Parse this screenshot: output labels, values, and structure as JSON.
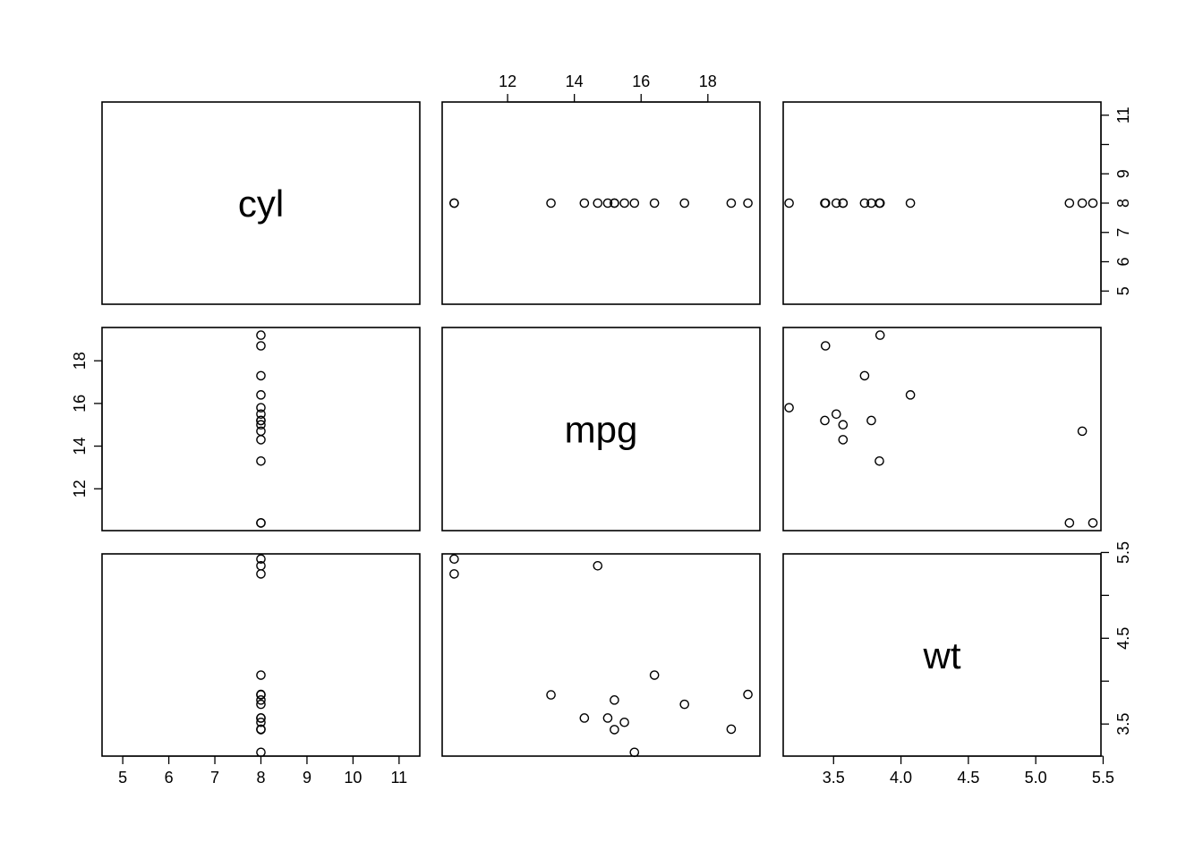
{
  "chart_data": {
    "type": "scatter",
    "kind": "scatterplot-matrix",
    "variables": [
      "cyl",
      "mpg",
      "wt"
    ],
    "grid": false,
    "legend": "none",
    "axes": {
      "cyl": {
        "lim": [
          4.55,
          11.45
        ],
        "ticks": [
          5,
          6,
          7,
          8,
          9,
          10,
          11
        ]
      },
      "mpg": {
        "lim": [
          10.04,
          19.56
        ],
        "ticks": [
          12,
          14,
          16,
          18
        ]
      },
      "wt": {
        "lim": [
          3.1262,
          5.4838
        ],
        "ticks": [
          3.5,
          4.0,
          4.5,
          5.0,
          5.5
        ],
        "tick_labels": [
          "3.5",
          "4.0",
          "4.5",
          "5.0",
          "5.5"
        ]
      }
    },
    "tick_label_overrides": {
      "bottom-wt": [
        "3.5",
        "4.0",
        "4.5",
        "5.0",
        "5.5"
      ],
      "right-wt": [
        "3.5",
        "4.5",
        "5.5"
      ],
      "right-cyl": [
        "5",
        "6",
        "7",
        "8",
        "9",
        "11"
      ]
    },
    "points": [
      {
        "cyl": 8,
        "mpg": 18.7,
        "wt": 3.44
      },
      {
        "cyl": 8,
        "mpg": 14.3,
        "wt": 3.57
      },
      {
        "cyl": 8,
        "mpg": 16.4,
        "wt": 4.07
      },
      {
        "cyl": 8,
        "mpg": 17.3,
        "wt": 3.73
      },
      {
        "cyl": 8,
        "mpg": 15.2,
        "wt": 3.78
      },
      {
        "cyl": 8,
        "mpg": 10.4,
        "wt": 5.25
      },
      {
        "cyl": 8,
        "mpg": 10.4,
        "wt": 5.424
      },
      {
        "cyl": 8,
        "mpg": 14.7,
        "wt": 5.345
      },
      {
        "cyl": 8,
        "mpg": 15.5,
        "wt": 3.52
      },
      {
        "cyl": 8,
        "mpg": 15.2,
        "wt": 3.435
      },
      {
        "cyl": 8,
        "mpg": 13.3,
        "wt": 3.84
      },
      {
        "cyl": 8,
        "mpg": 19.2,
        "wt": 3.845
      },
      {
        "cyl": 8,
        "mpg": 15.8,
        "wt": 3.17
      },
      {
        "cyl": 8,
        "mpg": 15.0,
        "wt": 3.57
      }
    ]
  }
}
